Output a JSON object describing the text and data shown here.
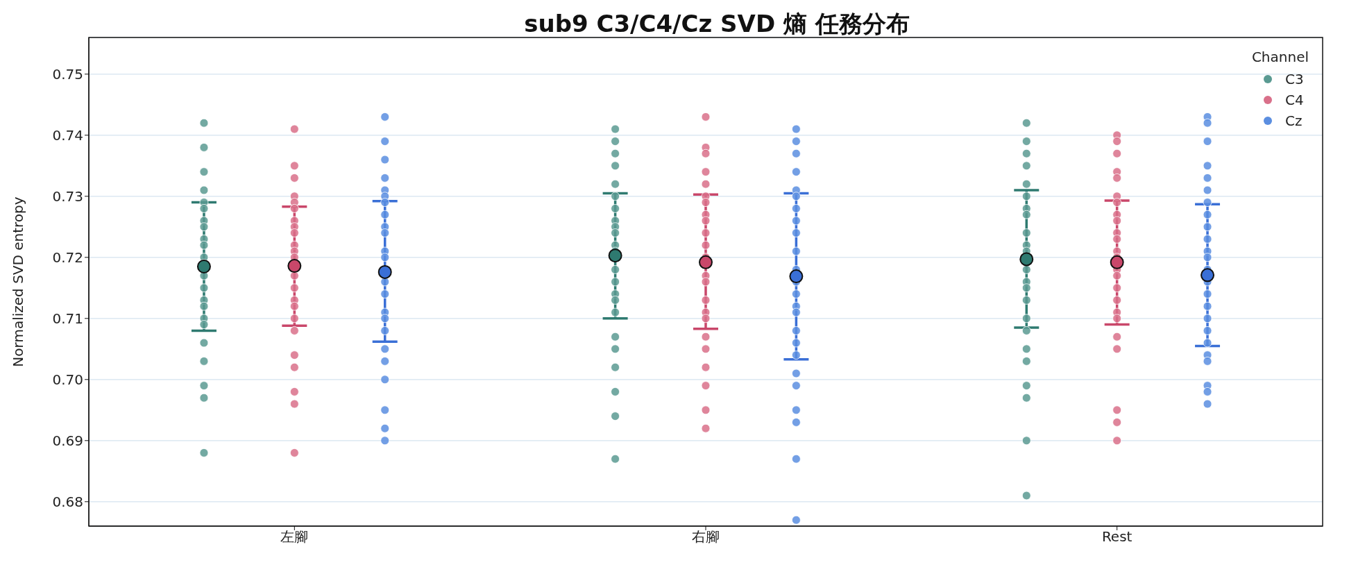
{
  "chart_data": {
    "type": "scatter",
    "title": "sub9 C3/C4/Cz SVD 熵 任務分布",
    "ylabel": "Normalized SVD entropy",
    "legend_title": "Channel",
    "legend": "top right",
    "grid": "y",
    "marker": "circle",
    "categories": [
      "左腳",
      "右腳",
      "Rest"
    ],
    "ylim": [
      0.676,
      0.756
    ],
    "yticks": [
      {
        "value": 0.68,
        "label": "0.68"
      },
      {
        "value": 0.69,
        "label": "0.69"
      },
      {
        "value": 0.7,
        "label": "0.70"
      },
      {
        "value": 0.71,
        "label": "0.71"
      },
      {
        "value": 0.72,
        "label": "0.72"
      },
      {
        "value": 0.73,
        "label": "0.73"
      },
      {
        "value": 0.74,
        "label": "0.74"
      },
      {
        "value": 0.75,
        "label": "0.75"
      }
    ],
    "series": [
      {
        "name": "C3",
        "color": "#5a9a92",
        "x": [
          "左腳",
          "左腳",
          "左腳",
          "左腳",
          "左腳",
          "左腳",
          "左腳",
          "左腳",
          "左腳",
          "左腳",
          "左腳",
          "左腳",
          "左腳",
          "左腳",
          "左腳",
          "左腳",
          "左腳",
          "左腳",
          "左腳",
          "左腳",
          "左腳",
          "左腳",
          "左腳",
          "右腳",
          "右腳",
          "右腳",
          "右腳",
          "右腳",
          "右腳",
          "右腳",
          "右腳",
          "右腳",
          "右腳",
          "右腳",
          "右腳",
          "右腳",
          "右腳",
          "右腳",
          "右腳",
          "右腳",
          "右腳",
          "右腳",
          "右腳",
          "右腳",
          "右腳",
          "右腳",
          "Rest",
          "Rest",
          "Rest",
          "Rest",
          "Rest",
          "Rest",
          "Rest",
          "Rest",
          "Rest",
          "Rest",
          "Rest",
          "Rest",
          "Rest",
          "Rest",
          "Rest",
          "Rest",
          "Rest",
          "Rest",
          "Rest",
          "Rest",
          "Rest",
          "Rest",
          "Rest"
        ],
        "values": [
          0.742,
          0.738,
          0.734,
          0.731,
          0.729,
          0.728,
          0.726,
          0.725,
          0.723,
          0.722,
          0.72,
          0.719,
          0.717,
          0.715,
          0.713,
          0.712,
          0.71,
          0.709,
          0.706,
          0.703,
          0.699,
          0.697,
          0.688,
          0.741,
          0.739,
          0.737,
          0.735,
          0.732,
          0.73,
          0.728,
          0.726,
          0.725,
          0.724,
          0.722,
          0.721,
          0.718,
          0.716,
          0.714,
          0.713,
          0.711,
          0.707,
          0.705,
          0.702,
          0.698,
          0.694,
          0.687,
          0.742,
          0.739,
          0.737,
          0.735,
          0.732,
          0.73,
          0.728,
          0.727,
          0.724,
          0.722,
          0.721,
          0.718,
          0.716,
          0.715,
          0.713,
          0.71,
          0.708,
          0.705,
          0.703,
          0.699,
          0.697,
          0.69,
          0.681
        ]
      },
      {
        "name": "C4",
        "color": "#d9708a",
        "x": [
          "左腳",
          "左腳",
          "左腳",
          "左腳",
          "左腳",
          "左腳",
          "左腳",
          "左腳",
          "左腳",
          "左腳",
          "左腳",
          "左腳",
          "左腳",
          "左腳",
          "左腳",
          "左腳",
          "左腳",
          "左腳",
          "左腳",
          "左腳",
          "左腳",
          "左腳",
          "左腳",
          "右腳",
          "右腳",
          "右腳",
          "右腳",
          "右腳",
          "右腳",
          "右腳",
          "右腳",
          "右腳",
          "右腳",
          "右腳",
          "右腳",
          "右腳",
          "右腳",
          "右腳",
          "右腳",
          "右腳",
          "右腳",
          "右腳",
          "右腳",
          "右腳",
          "右腳",
          "右腳",
          "Rest",
          "Rest",
          "Rest",
          "Rest",
          "Rest",
          "Rest",
          "Rest",
          "Rest",
          "Rest",
          "Rest",
          "Rest",
          "Rest",
          "Rest",
          "Rest",
          "Rest",
          "Rest",
          "Rest",
          "Rest",
          "Rest",
          "Rest",
          "Rest",
          "Rest",
          "Rest",
          "Rest"
        ],
        "values": [
          0.741,
          0.735,
          0.733,
          0.73,
          0.729,
          0.728,
          0.726,
          0.725,
          0.724,
          0.722,
          0.721,
          0.72,
          0.717,
          0.715,
          0.713,
          0.712,
          0.71,
          0.708,
          0.704,
          0.702,
          0.698,
          0.696,
          0.688,
          0.743,
          0.738,
          0.737,
          0.734,
          0.732,
          0.73,
          0.729,
          0.727,
          0.726,
          0.724,
          0.722,
          0.72,
          0.717,
          0.716,
          0.713,
          0.711,
          0.71,
          0.707,
          0.705,
          0.702,
          0.699,
          0.695,
          0.692,
          0.74,
          0.739,
          0.737,
          0.734,
          0.733,
          0.73,
          0.729,
          0.727,
          0.726,
          0.724,
          0.723,
          0.721,
          0.72,
          0.718,
          0.717,
          0.715,
          0.713,
          0.711,
          0.71,
          0.707,
          0.705,
          0.695,
          0.693,
          0.69
        ]
      },
      {
        "name": "Cz",
        "color": "#5b8ee0",
        "x": [
          "左腳",
          "左腳",
          "左腳",
          "左腳",
          "左腳",
          "左腳",
          "左腳",
          "左腳",
          "左腳",
          "左腳",
          "左腳",
          "左腳",
          "左腳",
          "左腳",
          "左腳",
          "左腳",
          "左腳",
          "左腳",
          "左腳",
          "左腳",
          "左腳",
          "左腳",
          "左腳",
          "右腳",
          "右腳",
          "右腳",
          "右腳",
          "右腳",
          "右腳",
          "右腳",
          "右腳",
          "右腳",
          "右腳",
          "右腳",
          "右腳",
          "右腳",
          "右腳",
          "右腳",
          "右腳",
          "右腳",
          "右腳",
          "右腳",
          "右腳",
          "右腳",
          "右腳",
          "右腳",
          "右腳",
          "Rest",
          "Rest",
          "Rest",
          "Rest",
          "Rest",
          "Rest",
          "Rest",
          "Rest",
          "Rest",
          "Rest",
          "Rest",
          "Rest",
          "Rest",
          "Rest",
          "Rest",
          "Rest",
          "Rest",
          "Rest",
          "Rest",
          "Rest",
          "Rest",
          "Rest",
          "Rest",
          "Rest"
        ],
        "values": [
          0.743,
          0.739,
          0.736,
          0.733,
          0.731,
          0.73,
          0.729,
          0.727,
          0.725,
          0.724,
          0.721,
          0.72,
          0.716,
          0.714,
          0.711,
          0.71,
          0.708,
          0.705,
          0.703,
          0.7,
          0.695,
          0.692,
          0.69,
          0.741,
          0.739,
          0.737,
          0.734,
          0.731,
          0.73,
          0.728,
          0.726,
          0.724,
          0.721,
          0.718,
          0.716,
          0.714,
          0.712,
          0.711,
          0.708,
          0.706,
          0.704,
          0.701,
          0.699,
          0.695,
          0.693,
          0.687,
          0.677,
          0.743,
          0.742,
          0.739,
          0.735,
          0.733,
          0.731,
          0.729,
          0.727,
          0.725,
          0.723,
          0.721,
          0.72,
          0.718,
          0.716,
          0.714,
          0.712,
          0.71,
          0.708,
          0.706,
          0.704,
          0.703,
          0.699,
          0.698,
          0.696
        ]
      },
      {
        "color": "#2e7a70",
        "x": [
          "左腳",
          "右腳",
          "Rest"
        ],
        "values": [
          0.7185,
          0.7203,
          0.7197
        ],
        "errors": [
          [
            0.708,
            0.729
          ],
          [
            0.71,
            0.7305
          ],
          [
            0.7085,
            0.731
          ]
        ]
      },
      {
        "color": "#c9476a",
        "x": [
          "左腳",
          "右腳",
          "Rest"
        ],
        "values": [
          0.7186,
          0.7192,
          0.7192
        ],
        "errors": [
          [
            0.7088,
            0.7283
          ],
          [
            0.7083,
            0.7303
          ],
          [
            0.709,
            0.7293
          ]
        ]
      },
      {
        "color": "#3a6fd6",
        "x": [
          "左腳",
          "右腳",
          "Rest"
        ],
        "values": [
          0.7176,
          0.7169,
          0.7171
        ],
        "errors": [
          [
            0.7062,
            0.7292
          ],
          [
            0.7033,
            0.7305
          ],
          [
            0.7055,
            0.7287
          ]
        ]
      }
    ]
  }
}
